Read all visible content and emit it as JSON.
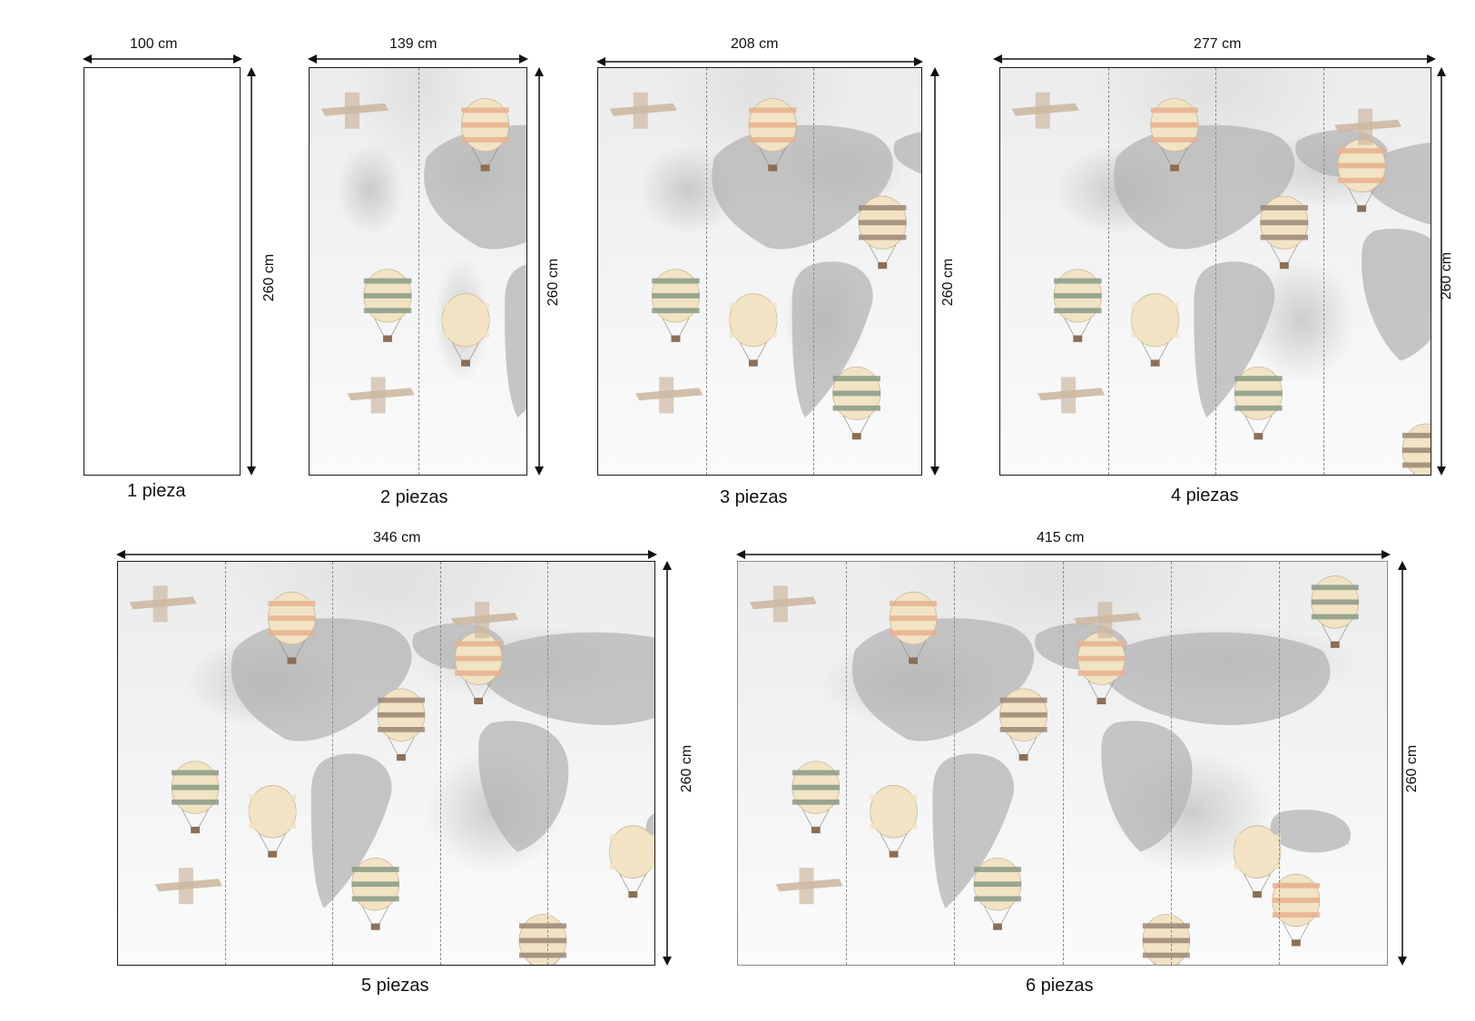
{
  "panels": [
    {
      "width_label": "100 cm",
      "height_label": "260 cm",
      "pieces_label": "1 pieza",
      "seams": 0,
      "illustrated": false
    },
    {
      "width_label": "139 cm",
      "height_label": "260 cm",
      "pieces_label": "2 piezas",
      "seams": 1,
      "illustrated": true
    },
    {
      "width_label": "208 cm",
      "height_label": "260 cm",
      "pieces_label": "3 piezas",
      "seams": 2,
      "illustrated": true
    },
    {
      "width_label": "277 cm",
      "height_label": "260 cm",
      "pieces_label": "4 piezas",
      "seams": 3,
      "illustrated": true
    },
    {
      "width_label": "346 cm",
      "height_label": "260 cm",
      "pieces_label": "5 piezas",
      "seams": 4,
      "illustrated": true
    },
    {
      "width_label": "415 cm",
      "height_label": "260 cm",
      "pieces_label": "6 piezas",
      "seams": 5,
      "illustrated": true
    }
  ],
  "colors": {
    "outline": "#1a1a1a",
    "seam": "#8c8c8c",
    "continent": "#b4b4b4",
    "balloon_green": "#8a9a86",
    "balloon_peach": "#e8b08e",
    "balloon_cream": "#f1e3c4",
    "balloon_brown": "#9c8677",
    "plane": "#cdb8a2"
  },
  "illustration_icons": [
    "hot-air-balloon-icon",
    "biplane-icon",
    "world-map-illustration"
  ]
}
